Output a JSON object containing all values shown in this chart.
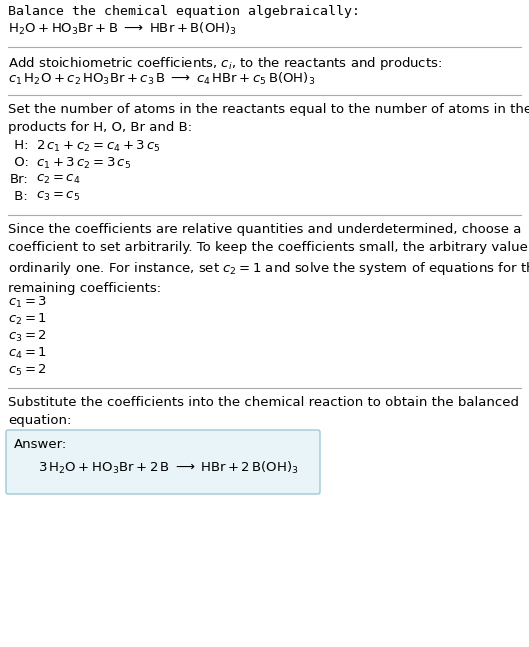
{
  "bg_color": "#ffffff",
  "text_color": "#000000",
  "section1_title": "Balance the chemical equation algebraically:",
  "section2_title": "Add stoichiometric coefficients, $c_i$, to the reactants and products:",
  "section3_title": "Set the number of atoms in the reactants equal to the number of atoms in the\nproducts for H, O, Br and B:",
  "section3_lines": [
    [
      " H:",
      "$2\\,c_1 + c_2 = c_4 + 3\\,c_5$"
    ],
    [
      " O:",
      "$c_1 + 3\\,c_2 = 3\\,c_5$"
    ],
    [
      "Br:",
      "$c_2 = c_4$"
    ],
    [
      " B:",
      "$c_3 = c_5$"
    ]
  ],
  "section4_title": "Since the coefficients are relative quantities and underdetermined, choose a\ncoefficient to set arbitrarily. To keep the coefficients small, the arbitrary value is\nordinarily one. For instance, set $c_2 = 1$ and solve the system of equations for the\nremaining coefficients:",
  "section4_lines": [
    "$c_1 = 3$",
    "$c_2 = 1$",
    "$c_3 = 2$",
    "$c_4 = 1$",
    "$c_5 = 2$"
  ],
  "section5_title": "Substitute the coefficients into the chemical reaction to obtain the balanced\nequation:",
  "answer_label": "Answer:",
  "answer_box_color": "#e8f4f8",
  "answer_box_border": "#a0c8d8",
  "divider_color": "#aaaaaa",
  "font_size": 9.5
}
